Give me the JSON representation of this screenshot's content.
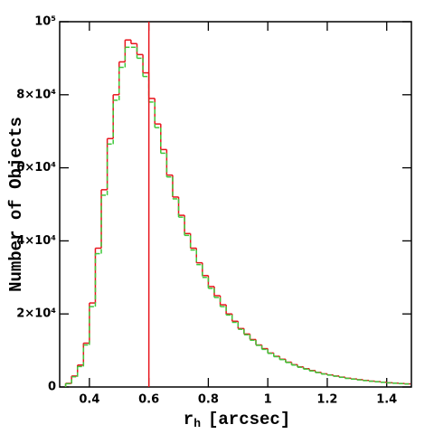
{
  "chart_data": {
    "type": "step-histogram",
    "ylabel": "Number of Objects",
    "xlabel": "r",
    "xlabel_sub": "h",
    "xlabel_unit": "[arcsec]",
    "bins": [
      0.32,
      0.34,
      0.36,
      0.38,
      0.4,
      0.42,
      0.44,
      0.46,
      0.48,
      0.5,
      0.52,
      0.54,
      0.56,
      0.58,
      0.6,
      0.62,
      0.64,
      0.66,
      0.68,
      0.7,
      0.72,
      0.74,
      0.76,
      0.78,
      0.8,
      0.82,
      0.84,
      0.86,
      0.88,
      0.9,
      0.92,
      0.94,
      0.96,
      0.98,
      1.0,
      1.02,
      1.04,
      1.06,
      1.08,
      1.1,
      1.12,
      1.14,
      1.16,
      1.18,
      1.2,
      1.22,
      1.24,
      1.26,
      1.28,
      1.3,
      1.32,
      1.34,
      1.36,
      1.38,
      1.4,
      1.42,
      1.44,
      1.46,
      1.48
    ],
    "series": [
      {
        "color": "#e8141c",
        "dash": false,
        "values": [
          1000,
          3000,
          6000,
          12000,
          23000,
          38000,
          54000,
          68000,
          80000,
          89000,
          95000,
          94000,
          91000,
          86000,
          79000,
          72000,
          65000,
          58000,
          52000,
          47000,
          42000,
          38000,
          34000,
          30500,
          27500,
          25000,
          22500,
          20000,
          18000,
          16000,
          14500,
          13000,
          11500,
          10500,
          9300,
          8400,
          7600,
          6800,
          6100,
          5500,
          5000,
          4500,
          4000,
          3600,
          3300,
          3000,
          2700,
          2400,
          2200,
          2000,
          1800,
          1600,
          1450,
          1300,
          1150,
          1050,
          950,
          850
        ]
      },
      {
        "color": "#3ec83a",
        "dash": true,
        "values": [
          900,
          2800,
          5600,
          11500,
          22000,
          36500,
          52500,
          66500,
          78500,
          87500,
          93000,
          93000,
          90000,
          85000,
          78000,
          71000,
          64000,
          57500,
          51500,
          46500,
          41500,
          37500,
          33500,
          30000,
          27000,
          24500,
          22000,
          19700,
          17700,
          15800,
          14300,
          12800,
          11400,
          10300,
          9200,
          8300,
          7500,
          6700,
          6000,
          5400,
          4900,
          4400,
          3950,
          3550,
          3250,
          2950,
          2650,
          2350,
          2150,
          1950,
          1750,
          1580,
          1430,
          1280,
          1130,
          1030,
          930,
          830
        ]
      }
    ],
    "vline": 0.6,
    "vline_color": "#e8141c",
    "xlim": [
      0.3,
      1.483
    ],
    "xticks": [
      0.4,
      0.6,
      0.8,
      1,
      1.2,
      1.4
    ],
    "ylim": [
      0,
      100000
    ],
    "yticks": [
      0,
      {
        "value": 20000,
        "label": "2×10⁴"
      },
      {
        "value": 40000,
        "label": "4×10⁴"
      },
      {
        "value": 60000,
        "label": "6×10⁴"
      },
      {
        "value": 80000,
        "label": "8×10⁴"
      },
      {
        "value": 100000,
        "label": "10⁵"
      }
    ]
  }
}
